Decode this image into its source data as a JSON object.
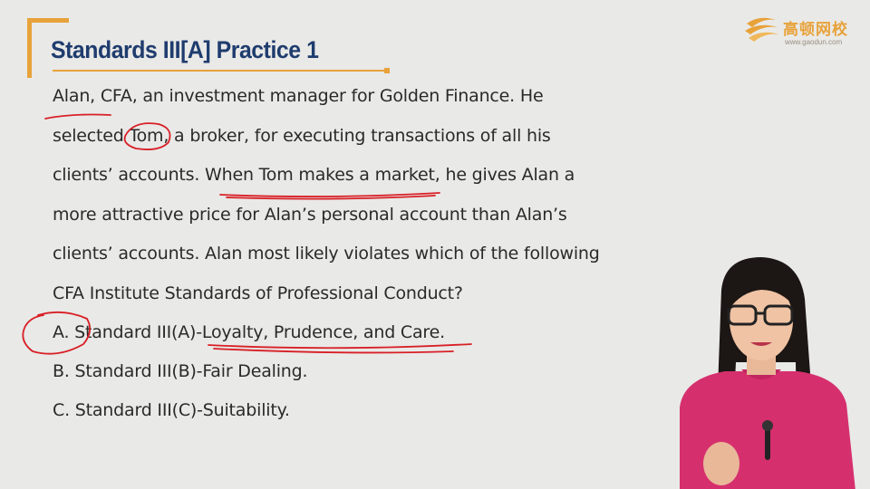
{
  "slide": {
    "title": "Standards III[A] Practice 1",
    "question_lines": [
      "Alan, CFA, an investment manager for Golden Finance. He",
      "selected Tom, a broker, for executing transactions of all his",
      "clients’ accounts. When Tom makes a market, he gives Alan a",
      "more attractive price for Alan’s personal account than Alan’s",
      "clients’ accounts. Alan most likely violates which of the following",
      "CFA Institute Standards of Professional Conduct?"
    ],
    "options": [
      "A. Standard III(A)-Loyalty, Prudence, and Care.",
      "B. Standard III(B)-Fair Dealing.",
      "C. Standard III(C)-Suitability."
    ]
  },
  "logo": {
    "name": "高顿网校",
    "url": "www.gaodun.com",
    "icon": "gaodun-logo-icon"
  },
  "colors": {
    "accent": "#e8a23a",
    "title": "#1f3c6e",
    "ink": "#d81f26",
    "text": "#2a2a2a",
    "background": "#e9e9e7",
    "presenter_top": "#d62f6e"
  },
  "presenter": {
    "icon": "presenter-video"
  }
}
